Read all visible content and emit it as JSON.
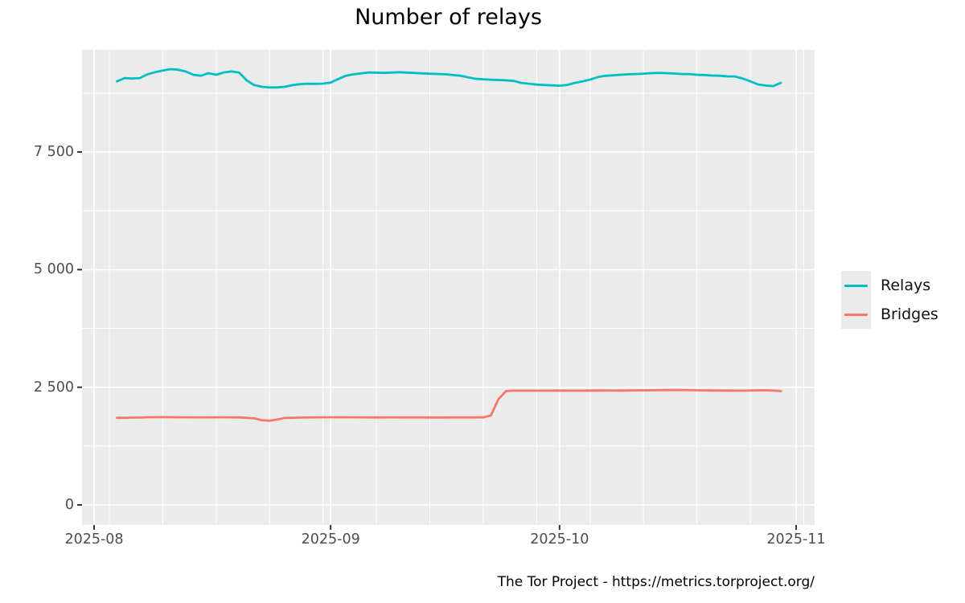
{
  "chart_data": {
    "type": "line",
    "title": "Number of relays",
    "footer": "The Tor Project - https://metrics.torproject.org/",
    "legend_position": "right",
    "colors": {
      "panel_background": "#ebebeb",
      "gridline": "#ffffff",
      "axis_text": "#4d4d4d",
      "tick_mark": "#333333"
    },
    "x_axis": {
      "major_ticks": [
        {
          "date": "2025-08-01",
          "label": "2025-08"
        },
        {
          "date": "2025-09-01",
          "label": "2025-09"
        },
        {
          "date": "2025-10-01",
          "label": "2025-10"
        },
        {
          "date": "2025-11-01",
          "label": "2025-11"
        }
      ],
      "minor_ticks": [
        "2025-08-03",
        "2025-08-10",
        "2025-08-17",
        "2025-08-24",
        "2025-08-31",
        "2025-09-07",
        "2025-09-14",
        "2025-09-21",
        "2025-09-28",
        "2025-10-05",
        "2025-10-12",
        "2025-10-19",
        "2025-10-26",
        "2025-11-02"
      ]
    },
    "y_axis": {
      "major_ticks": [
        {
          "value": 0,
          "label": "0"
        },
        {
          "value": 2500,
          "label": "2 500"
        },
        {
          "value": 5000,
          "label": "5 000"
        },
        {
          "value": 7500,
          "label": "7 500"
        }
      ],
      "minor_ticks": [
        1250,
        3750,
        6250,
        8750
      ],
      "ylim": [
        0,
        9670
      ]
    },
    "series": [
      {
        "name": "Relays",
        "color": "#00BFC4",
        "points": [
          [
            "2025-08-04",
            9000
          ],
          [
            "2025-08-05",
            9070
          ],
          [
            "2025-08-06",
            9062
          ],
          [
            "2025-08-07",
            9070
          ],
          [
            "2025-08-08",
            9150
          ],
          [
            "2025-08-09",
            9195
          ],
          [
            "2025-08-10",
            9230
          ],
          [
            "2025-08-11",
            9260
          ],
          [
            "2025-08-12",
            9248
          ],
          [
            "2025-08-13",
            9210
          ],
          [
            "2025-08-14",
            9140
          ],
          [
            "2025-08-15",
            9120
          ],
          [
            "2025-08-16",
            9175
          ],
          [
            "2025-08-17",
            9140
          ],
          [
            "2025-08-18",
            9190
          ],
          [
            "2025-08-19",
            9210
          ],
          [
            "2025-08-20",
            9188
          ],
          [
            "2025-08-21",
            9020
          ],
          [
            "2025-08-22",
            8920
          ],
          [
            "2025-08-23",
            8885
          ],
          [
            "2025-08-24",
            8868
          ],
          [
            "2025-08-25",
            8872
          ],
          [
            "2025-08-26",
            8885
          ],
          [
            "2025-08-27",
            8920
          ],
          [
            "2025-08-28",
            8940
          ],
          [
            "2025-08-29",
            8950
          ],
          [
            "2025-08-30",
            8948
          ],
          [
            "2025-08-31",
            8952
          ],
          [
            "2025-09-01",
            8975
          ],
          [
            "2025-09-02",
            9050
          ],
          [
            "2025-09-03",
            9120
          ],
          [
            "2025-09-04",
            9150
          ],
          [
            "2025-09-06",
            9190
          ],
          [
            "2025-09-08",
            9180
          ],
          [
            "2025-09-10",
            9195
          ],
          [
            "2025-09-12",
            9178
          ],
          [
            "2025-09-14",
            9162
          ],
          [
            "2025-09-16",
            9150
          ],
          [
            "2025-09-18",
            9120
          ],
          [
            "2025-09-20",
            9055
          ],
          [
            "2025-09-22",
            9035
          ],
          [
            "2025-09-24",
            9022
          ],
          [
            "2025-09-25",
            9008
          ],
          [
            "2025-09-26",
            8968
          ],
          [
            "2025-09-28",
            8932
          ],
          [
            "2025-09-30",
            8915
          ],
          [
            "2025-10-01",
            8908
          ],
          [
            "2025-10-02",
            8925
          ],
          [
            "2025-10-03",
            8968
          ],
          [
            "2025-10-04",
            9000
          ],
          [
            "2025-10-05",
            9038
          ],
          [
            "2025-10-06",
            9090
          ],
          [
            "2025-10-07",
            9118
          ],
          [
            "2025-10-08",
            9130
          ],
          [
            "2025-10-09",
            9140
          ],
          [
            "2025-10-10",
            9150
          ],
          [
            "2025-10-11",
            9156
          ],
          [
            "2025-10-12",
            9165
          ],
          [
            "2025-10-13",
            9175
          ],
          [
            "2025-10-14",
            9180
          ],
          [
            "2025-10-15",
            9175
          ],
          [
            "2025-10-16",
            9168
          ],
          [
            "2025-10-17",
            9156
          ],
          [
            "2025-10-18",
            9155
          ],
          [
            "2025-10-19",
            9140
          ],
          [
            "2025-10-20",
            9135
          ],
          [
            "2025-10-21",
            9124
          ],
          [
            "2025-10-22",
            9120
          ],
          [
            "2025-10-23",
            9106
          ],
          [
            "2025-10-24",
            9104
          ],
          [
            "2025-10-25",
            9060
          ],
          [
            "2025-10-26",
            9000
          ],
          [
            "2025-10-27",
            8935
          ],
          [
            "2025-10-28",
            8912
          ],
          [
            "2025-10-29",
            8900
          ],
          [
            "2025-10-30",
            8968
          ]
        ]
      },
      {
        "name": "Bridges",
        "color": "#F8766D",
        "points": [
          [
            "2025-08-04",
            1850
          ],
          [
            "2025-08-05",
            1852
          ],
          [
            "2025-08-06",
            1855
          ],
          [
            "2025-08-07",
            1856
          ],
          [
            "2025-08-08",
            1862
          ],
          [
            "2025-08-10",
            1865
          ],
          [
            "2025-08-12",
            1862
          ],
          [
            "2025-08-14",
            1860
          ],
          [
            "2025-08-16",
            1860
          ],
          [
            "2025-08-18",
            1862
          ],
          [
            "2025-08-20",
            1858
          ],
          [
            "2025-08-21",
            1850
          ],
          [
            "2025-08-22",
            1838
          ],
          [
            "2025-08-23",
            1800
          ],
          [
            "2025-08-24",
            1788
          ],
          [
            "2025-08-25",
            1815
          ],
          [
            "2025-08-26",
            1848
          ],
          [
            "2025-08-28",
            1856
          ],
          [
            "2025-08-30",
            1860
          ],
          [
            "2025-09-01",
            1862
          ],
          [
            "2025-09-03",
            1862
          ],
          [
            "2025-09-05",
            1860
          ],
          [
            "2025-09-07",
            1858
          ],
          [
            "2025-09-09",
            1860
          ],
          [
            "2025-09-11",
            1858
          ],
          [
            "2025-09-13",
            1858
          ],
          [
            "2025-09-15",
            1857
          ],
          [
            "2025-09-17",
            1858
          ],
          [
            "2025-09-19",
            1858
          ],
          [
            "2025-09-21",
            1860
          ],
          [
            "2025-09-22",
            1900
          ],
          [
            "2025-09-23",
            2250
          ],
          [
            "2025-09-24",
            2420
          ],
          [
            "2025-09-25",
            2430
          ],
          [
            "2025-09-27",
            2428
          ],
          [
            "2025-09-29",
            2428
          ],
          [
            "2025-10-01",
            2430
          ],
          [
            "2025-10-03",
            2428
          ],
          [
            "2025-10-05",
            2430
          ],
          [
            "2025-10-07",
            2432
          ],
          [
            "2025-10-09",
            2430
          ],
          [
            "2025-10-11",
            2434
          ],
          [
            "2025-10-13",
            2436
          ],
          [
            "2025-10-15",
            2440
          ],
          [
            "2025-10-17",
            2442
          ],
          [
            "2025-10-19",
            2436
          ],
          [
            "2025-10-21",
            2432
          ],
          [
            "2025-10-23",
            2430
          ],
          [
            "2025-10-25",
            2428
          ],
          [
            "2025-10-27",
            2434
          ],
          [
            "2025-10-28",
            2436
          ],
          [
            "2025-10-29",
            2430
          ],
          [
            "2025-10-30",
            2420
          ]
        ]
      }
    ]
  }
}
